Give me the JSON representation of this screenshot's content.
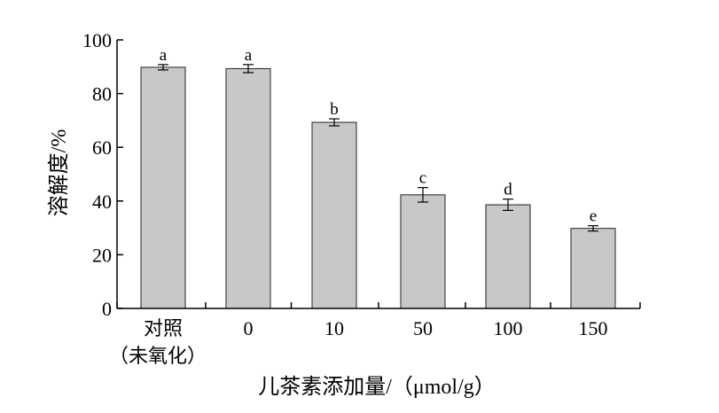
{
  "chart_data": {
    "type": "bar",
    "ylabel": "溶解度/%",
    "xlabel": "儿茶素添加量/（μmol/g）",
    "ylim": [
      0,
      100
    ],
    "yticks": [
      0,
      20,
      40,
      60,
      80,
      100
    ],
    "grid": false,
    "categories": [
      {
        "line1": "对照",
        "line2": "（未氧化）"
      },
      {
        "line1": "0",
        "line2": ""
      },
      {
        "line1": "10",
        "line2": ""
      },
      {
        "line1": "50",
        "line2": ""
      },
      {
        "line1": "100",
        "line2": ""
      },
      {
        "line1": "150",
        "line2": ""
      }
    ],
    "values": [
      89.8,
      89.3,
      69.3,
      42.3,
      38.6,
      29.8
    ],
    "errors": [
      1.0,
      1.5,
      1.3,
      2.7,
      2.1,
      1.0
    ],
    "significance": [
      "a",
      "a",
      "b",
      "c",
      "d",
      "e"
    ],
    "colors": {
      "bar_fill": "#c8c8c8",
      "bar_stroke": "#222222",
      "axis": "#000000"
    }
  }
}
